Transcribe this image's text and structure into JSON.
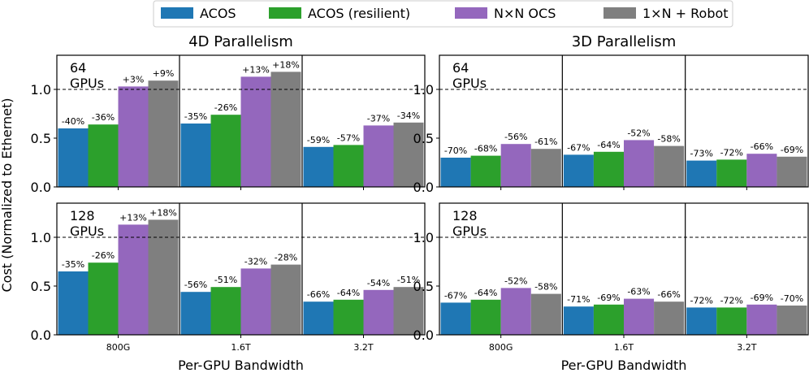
{
  "chart_data": {
    "type": "bar",
    "legend": {
      "placement": "top-center",
      "entries": [
        {
          "name": "ACOS",
          "color": "#1f77b4"
        },
        {
          "name": "ACOS (resilient)",
          "color": "#2ca02c"
        },
        {
          "name": "N×N OCS",
          "color": "#9467bd"
        },
        {
          "name": "1×N + Robot",
          "color": "#7f7f7f"
        }
      ]
    },
    "ylabel": "Cost (Normalized to Ethernet)",
    "xlabel": "Per-GPU Bandwidth",
    "categories": [
      "800G",
      "1.6T",
      "3.2T"
    ],
    "ylim": [
      0,
      1.35
    ],
    "yticks": [
      "0.0",
      "0.5",
      "1.0"
    ],
    "reference_line": 1.0,
    "columns": [
      {
        "title": "4D Parallelism"
      },
      {
        "title": "3D Parallelism"
      }
    ],
    "panels": [
      {
        "column": 0,
        "row": 0,
        "label_count": "64",
        "label_unit": "GPUs",
        "groups": [
          {
            "values": [
              0.6,
              0.64,
              1.03,
              1.09
            ],
            "labels": [
              "-40%",
              "-36%",
              "+3%",
              "+9%"
            ]
          },
          {
            "values": [
              0.65,
              0.74,
              1.13,
              1.18
            ],
            "labels": [
              "-35%",
              "-26%",
              "+13%",
              "+18%"
            ]
          },
          {
            "values": [
              0.41,
              0.43,
              0.63,
              0.66
            ],
            "labels": [
              "-59%",
              "-57%",
              "-37%",
              "-34%"
            ]
          }
        ]
      },
      {
        "column": 1,
        "row": 0,
        "label_count": "64",
        "label_unit": "GPUs",
        "groups": [
          {
            "values": [
              0.3,
              0.32,
              0.44,
              0.39
            ],
            "labels": [
              "-70%",
              "-68%",
              "-56%",
              "-61%"
            ]
          },
          {
            "values": [
              0.33,
              0.36,
              0.48,
              0.42
            ],
            "labels": [
              "-67%",
              "-64%",
              "-52%",
              "-58%"
            ]
          },
          {
            "values": [
              0.27,
              0.28,
              0.34,
              0.31
            ],
            "labels": [
              "-73%",
              "-72%",
              "-66%",
              "-69%"
            ]
          }
        ]
      },
      {
        "column": 0,
        "row": 1,
        "label_count": "128",
        "label_unit": "GPUs",
        "groups": [
          {
            "values": [
              0.65,
              0.74,
              1.13,
              1.18
            ],
            "labels": [
              "-35%",
              "-26%",
              "+13%",
              "+18%"
            ]
          },
          {
            "values": [
              0.44,
              0.49,
              0.68,
              0.72
            ],
            "labels": [
              "-56%",
              "-51%",
              "-32%",
              "-28%"
            ]
          },
          {
            "values": [
              0.34,
              0.36,
              0.46,
              0.49
            ],
            "labels": [
              "-66%",
              "-64%",
              "-54%",
              "-51%"
            ]
          }
        ]
      },
      {
        "column": 1,
        "row": 1,
        "label_count": "128",
        "label_unit": "GPUs",
        "groups": [
          {
            "values": [
              0.33,
              0.36,
              0.48,
              0.42
            ],
            "labels": [
              "-67%",
              "-64%",
              "-52%",
              "-58%"
            ]
          },
          {
            "values": [
              0.29,
              0.31,
              0.37,
              0.34
            ],
            "labels": [
              "-71%",
              "-69%",
              "-63%",
              "-66%"
            ]
          },
          {
            "values": [
              0.28,
              0.28,
              0.31,
              0.3
            ],
            "labels": [
              "-72%",
              "-72%",
              "-69%",
              "-70%"
            ]
          }
        ]
      }
    ]
  }
}
